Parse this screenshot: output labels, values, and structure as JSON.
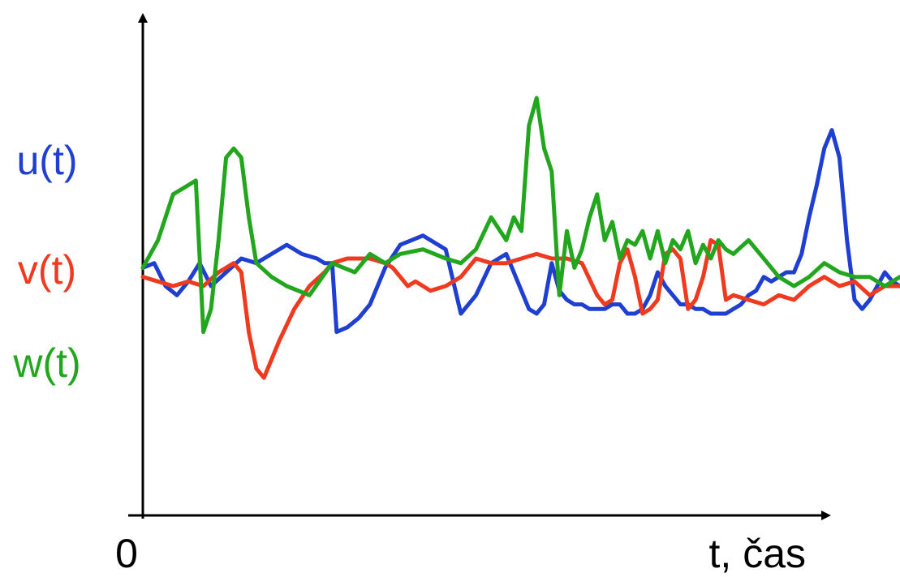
{
  "chart_data": {
    "type": "line",
    "title": "",
    "xlabel": "t, čas",
    "ylabel": "",
    "x_origin_label": "0",
    "xlim": [
      0,
      100
    ],
    "ylim": [
      0,
      100
    ],
    "grid": false,
    "legend": "left",
    "series": [
      {
        "name": "u(t)",
        "color": "#1f3fd0",
        "x": [
          0,
          1.5,
          3,
          4.5,
          6,
          7.5,
          9,
          11,
          13,
          15,
          17,
          19,
          21,
          23,
          24,
          25,
          25.6,
          27,
          28.5,
          30,
          32,
          34,
          37,
          40,
          42,
          44,
          46,
          48,
          51,
          52,
          53,
          54,
          55,
          56,
          57,
          58,
          59,
          60,
          61,
          62,
          63,
          64,
          65,
          66,
          67,
          68,
          69,
          70,
          71,
          72,
          73,
          74,
          75,
          76,
          77,
          78,
          79,
          80,
          81,
          82,
          83,
          84,
          85,
          86,
          87,
          88,
          89,
          90,
          91,
          92,
          93,
          94,
          95,
          96,
          97,
          98,
          99,
          100
        ],
        "y": [
          54,
          55,
          50,
          48,
          51,
          55,
          50,
          53,
          56,
          55,
          57,
          59,
          57,
          56,
          55,
          55,
          40,
          41,
          43,
          46,
          54,
          59,
          61,
          58,
          44,
          48,
          55,
          57,
          45,
          44,
          46,
          55,
          49,
          47,
          46,
          46,
          45,
          45,
          45,
          46,
          46,
          44,
          44,
          45,
          48,
          53,
          50,
          48,
          46,
          46,
          45,
          45,
          44,
          44,
          44,
          45,
          46,
          48,
          49,
          52,
          51,
          52,
          53,
          53,
          57,
          65,
          72,
          80,
          84,
          78,
          60,
          47,
          45,
          47,
          50,
          53,
          51,
          50
        ]
      },
      {
        "name": "v(t)",
        "color": "#ee3a1e",
        "x": [
          0,
          2,
          4,
          6,
          8,
          10,
          12,
          13,
          14,
          15,
          16,
          17,
          18,
          20,
          22,
          24,
          25,
          27,
          30,
          32,
          33,
          34,
          35,
          36,
          38,
          40,
          42,
          44,
          46,
          47,
          48,
          50,
          52,
          54,
          56,
          58,
          60,
          61,
          62,
          63,
          64,
          65,
          66,
          67,
          68,
          69,
          70,
          71,
          72,
          73,
          74,
          75,
          76,
          77,
          78,
          80,
          82,
          84,
          86,
          88,
          90,
          92,
          94,
          96,
          98,
          100
        ],
        "y": [
          52,
          51,
          50,
          51,
          50,
          53,
          55,
          53,
          40,
          32,
          30,
          34,
          38,
          45,
          50,
          53,
          55,
          56,
          56,
          55,
          54,
          52,
          50,
          51,
          49,
          50,
          52,
          56,
          55,
          55,
          55,
          56,
          57,
          56,
          56,
          55,
          48,
          46,
          47,
          55,
          58,
          52,
          44,
          45,
          47,
          57,
          58,
          56,
          45,
          47,
          52,
          60,
          59,
          47,
          48,
          47,
          46,
          48,
          47,
          50,
          52,
          50,
          51,
          48,
          50,
          50
        ]
      },
      {
        "name": "w(t)",
        "color": "#22a61e",
        "x": [
          0,
          2,
          4,
          6,
          7,
          8,
          9,
          10,
          11,
          12,
          13,
          14,
          15,
          17,
          19,
          22,
          25,
          28,
          30,
          32,
          34,
          37,
          40,
          42,
          44,
          46,
          48,
          49,
          50,
          51,
          52,
          53,
          54,
          55,
          56,
          57,
          58,
          59,
          60,
          61,
          62,
          63,
          64,
          65,
          66,
          67,
          68,
          69,
          70,
          71,
          72,
          73,
          74,
          75,
          76,
          77,
          78,
          80,
          82,
          84,
          86,
          88,
          90,
          92,
          94,
          96,
          98,
          100
        ],
        "y": [
          54,
          60,
          70,
          72,
          73,
          40,
          45,
          60,
          78,
          80,
          78,
          65,
          55,
          52,
          50,
          48,
          55,
          53,
          57,
          55,
          57,
          58,
          56,
          55,
          58,
          65,
          60,
          65,
          62,
          85,
          91,
          80,
          75,
          48,
          62,
          54,
          58,
          65,
          70,
          60,
          64,
          56,
          60,
          59,
          62,
          56,
          62,
          55,
          60,
          58,
          62,
          55,
          59,
          56,
          60,
          58,
          57,
          60,
          56,
          52,
          50,
          52,
          55,
          53,
          52,
          52,
          50,
          52
        ]
      }
    ]
  }
}
